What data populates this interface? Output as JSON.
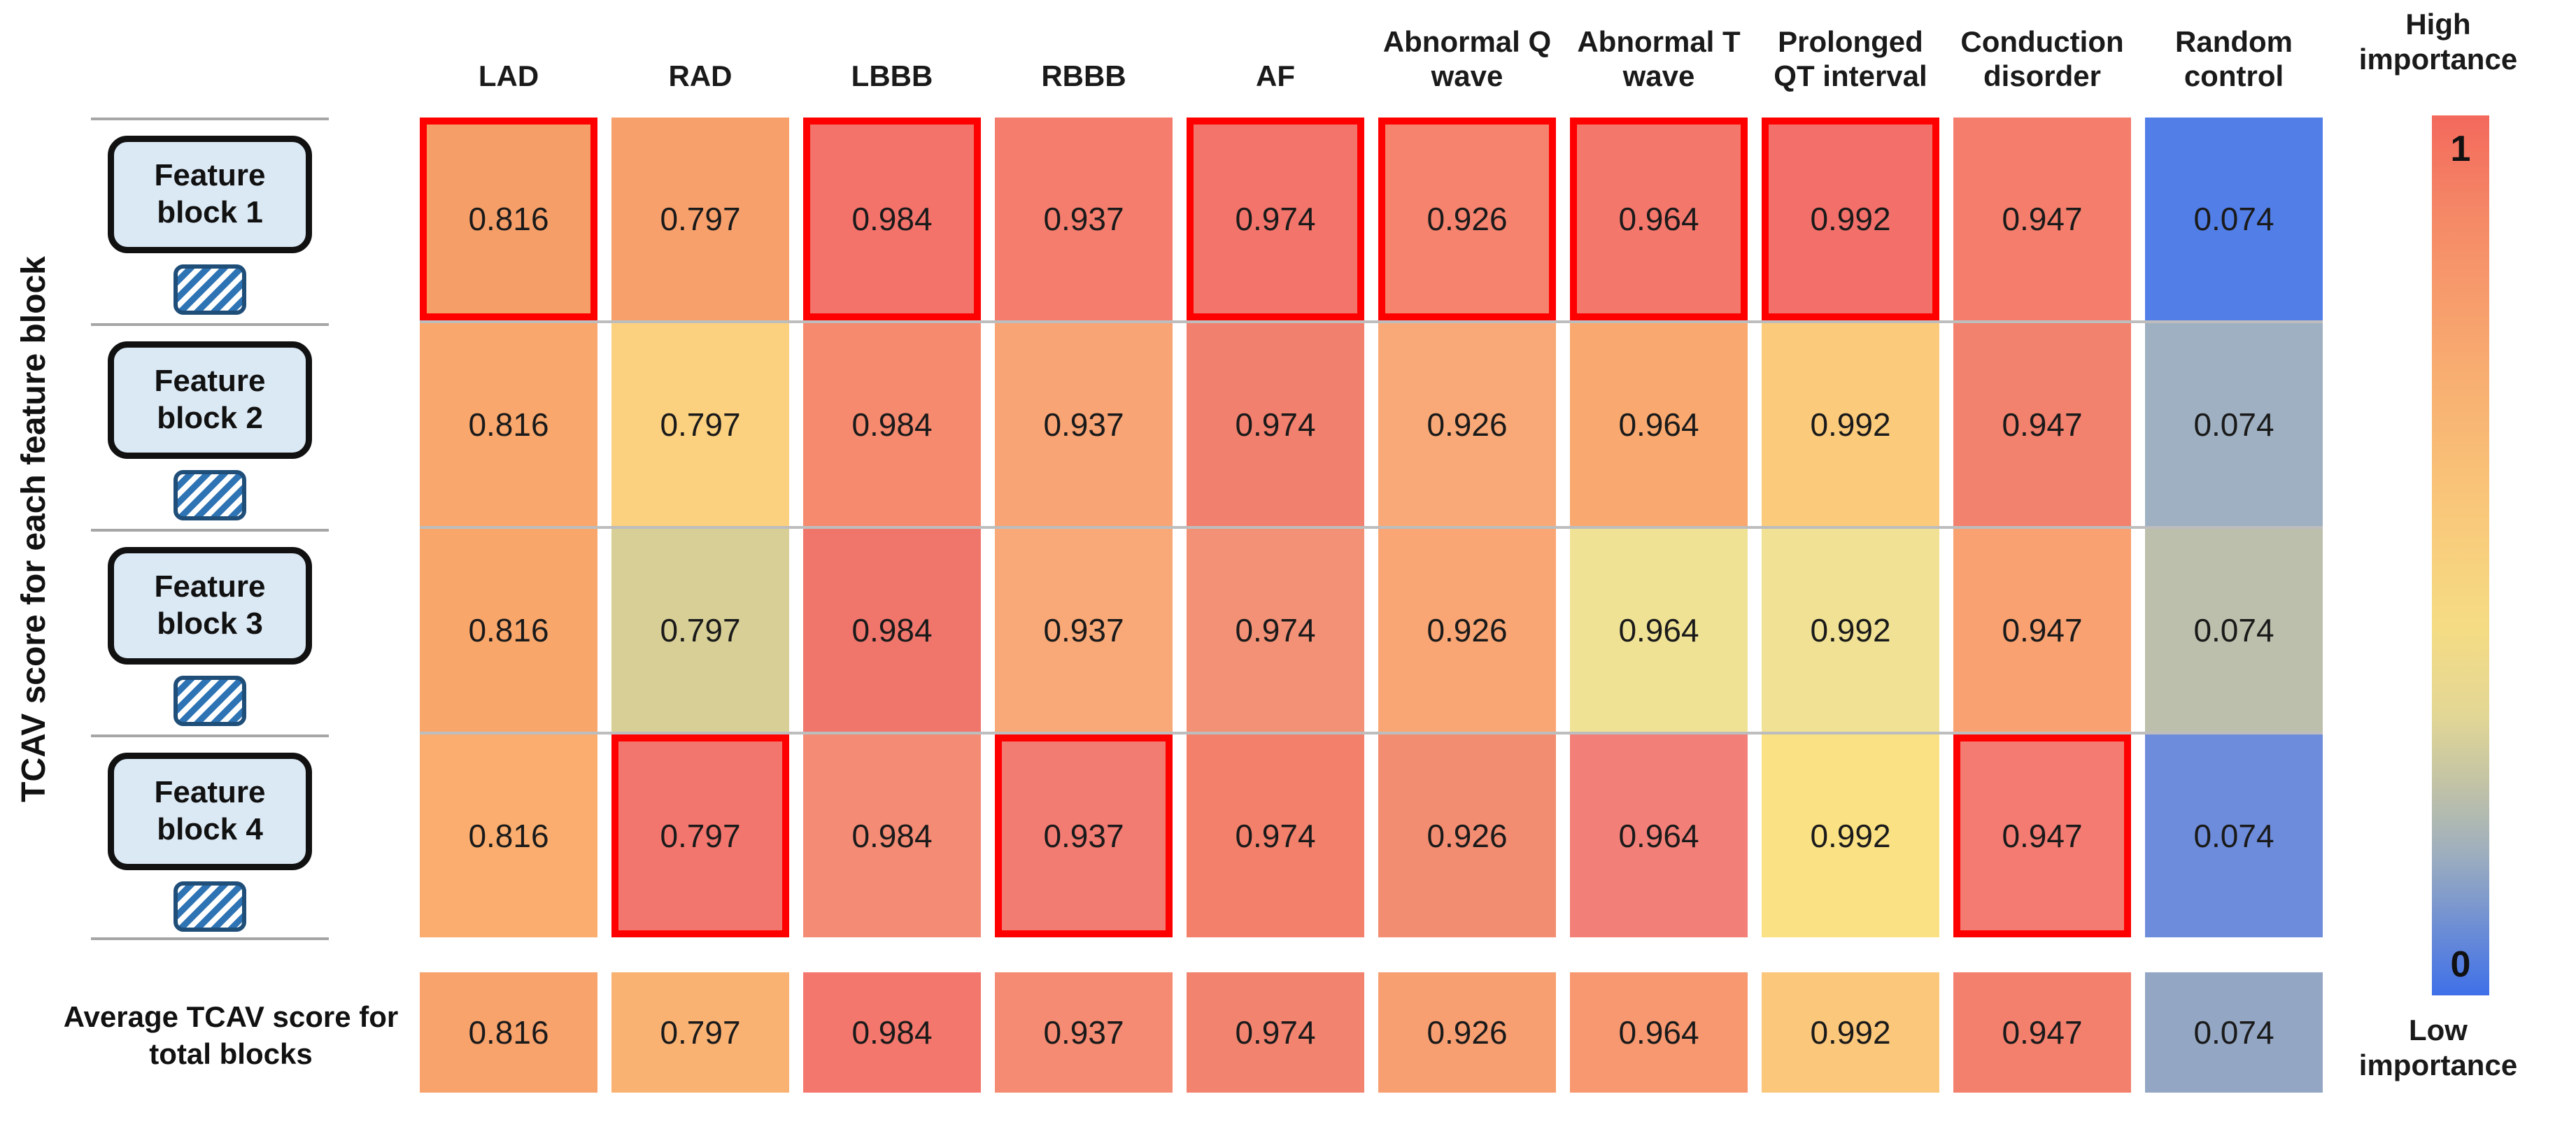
{
  "chart_data": {
    "type": "heatmap",
    "ylabel": "TCAV score for each feature block",
    "columns": [
      "LAD",
      "RAD",
      "LBBB",
      "RBBB",
      "AF",
      "Abnormal Q wave",
      "Abnormal T wave",
      "Prolonged QT interval",
      "Conduction disorder",
      "Random control"
    ],
    "value_range": [
      0,
      1
    ],
    "legend": {
      "high_label": "High importance",
      "low_label": "Low importance",
      "max_tick": "1",
      "min_tick": "0",
      "highlight_border_color": "#fe0000",
      "colorbar_top_color": "#f3695c",
      "colorbar_mid_color": "#f5dc84",
      "colorbar_bottom_color": "#3f70e8"
    },
    "rows": [
      {
        "label": "Feature block 1",
        "values": [
          "0.816",
          "0.797",
          "0.984",
          "0.937",
          "0.974",
          "0.926",
          "0.964",
          "0.992",
          "0.947",
          "0.074"
        ],
        "colors": [
          "#f59e68",
          "#f8a06b",
          "#f3726a",
          "#f47d6d",
          "#f3746a",
          "#f5836e",
          "#f4776c",
          "#f36f69",
          "#f47e6b",
          "#527ee8"
        ],
        "highlighted_columns": [
          0,
          2,
          4,
          5,
          6,
          7
        ]
      },
      {
        "label": "Feature block 2",
        "values": [
          "0.816",
          "0.797",
          "0.984",
          "0.937",
          "0.974",
          "0.926",
          "0.964",
          "0.992",
          "0.947",
          "0.074"
        ],
        "colors": [
          "#f9a76c",
          "#fbd07e",
          "#f58a6f",
          "#f8a475",
          "#f2806e",
          "#f9a977",
          "#f9a96f",
          "#fbcb7b",
          "#f2816d",
          "#9fb0c2"
        ],
        "highlighted_columns": []
      },
      {
        "label": "Feature block 3",
        "values": [
          "0.816",
          "0.797",
          "0.984",
          "0.937",
          "0.974",
          "0.926",
          "0.964",
          "0.992",
          "0.947",
          "0.074"
        ],
        "colors": [
          "#f9a66b",
          "#d8cf97",
          "#f0766c",
          "#f9a877",
          "#f39176",
          "#f9a674",
          "#f0e295",
          "#f0e194",
          "#f9a171",
          "#bcbfab"
        ],
        "highlighted_columns": []
      },
      {
        "label": "Feature block 4",
        "values": [
          "0.816",
          "0.797",
          "0.984",
          "0.937",
          "0.974",
          "0.926",
          "0.964",
          "0.992",
          "0.947",
          "0.074"
        ],
        "colors": [
          "#faad6e",
          "#f3766e",
          "#f38b75",
          "#f27b72",
          "#f2806b",
          "#f28d72",
          "#f38078",
          "#fae184",
          "#f37b72",
          "#6d8cdb"
        ],
        "highlighted_columns": [
          1,
          3,
          8
        ]
      }
    ],
    "average_row": {
      "label": "Average TCAV score for total blocks",
      "values": [
        "0.816",
        "0.797",
        "0.984",
        "0.937",
        "0.974",
        "0.926",
        "0.964",
        "0.992",
        "0.947",
        "0.074"
      ],
      "colors": [
        "#f8a26c",
        "#fab273",
        "#f3776c",
        "#f48b72",
        "#f2836f",
        "#f89f72",
        "#f79870",
        "#fbc77a",
        "#f3806d",
        "#93a6c4"
      ],
      "highlighted_columns": []
    }
  }
}
